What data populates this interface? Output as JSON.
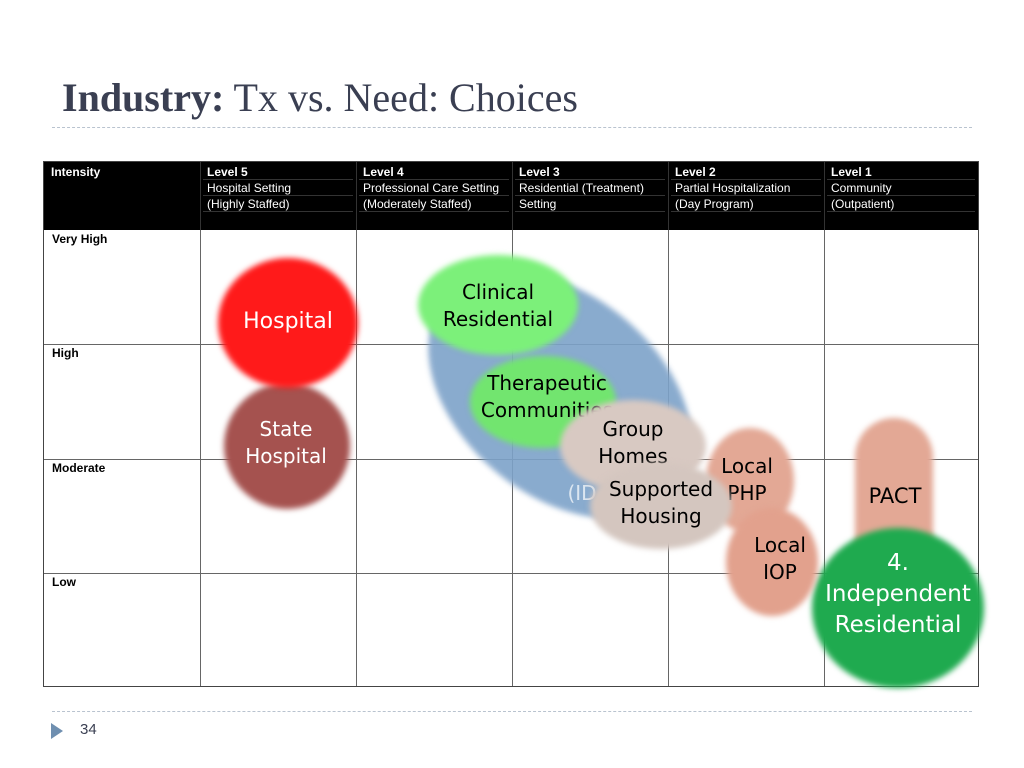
{
  "title": {
    "bold": "Industry:",
    "rest": " Tx vs. Need: Choices"
  },
  "header": {
    "intensity": "Intensity",
    "levels": [
      {
        "level": "Level 5",
        "line2": "Hospital Setting",
        "line3": "(Highly Staffed)"
      },
      {
        "level": "Level 4",
        "line2": "Professional Care Setting",
        "line3": "(Moderately Staffed)"
      },
      {
        "level": "Level 3",
        "line2": "Residential (Treatment)",
        "line3": "Setting"
      },
      {
        "level": "Level 2",
        "line2": "Partial Hospitalization",
        "line3": "(Day Program)"
      },
      {
        "level": "Level 1",
        "line2": "Community",
        "line3": "(Outpatient)"
      }
    ]
  },
  "rows": [
    "Very High",
    "High",
    "Moderate",
    "Low"
  ],
  "blobs": {
    "hospital": "Hospital",
    "state_hospital": {
      "line1": "State",
      "line2": "Hospital"
    },
    "clinical_residential": {
      "line1": "Clinical",
      "line2": "Residential"
    },
    "therapeutic_communities": {
      "line1": "Therapeutic",
      "line2": "Communities"
    },
    "ido_hidden": "(ID",
    "group_homes": {
      "line1": "Group",
      "line2": "Homes"
    },
    "supported_housing": {
      "line1": "Supported",
      "line2": "Housing"
    },
    "local_php": {
      "line1": "Local",
      "line2": "PHP"
    },
    "local_iop": {
      "line1": "Local",
      "line2": "IOP"
    },
    "pact": "PACT",
    "independent_residential": {
      "line1": "4.",
      "line2": "Independent",
      "line3": "Residential"
    }
  },
  "colors": {
    "hospital": "#ff1a1a",
    "state_hospital": "#a5524f",
    "clinical_residential": "#7cf07a",
    "therapeutic_communities": "#72e56f",
    "ellipse": "#7da2c9",
    "group_homes": "#d8c9c2",
    "supported_housing": "#d4c6bf",
    "local_php": "#e3a895",
    "local_iop": "#e2a18d",
    "pact": "#e3a895",
    "independent_residential": "#1faa4f"
  },
  "slide_number": "34"
}
